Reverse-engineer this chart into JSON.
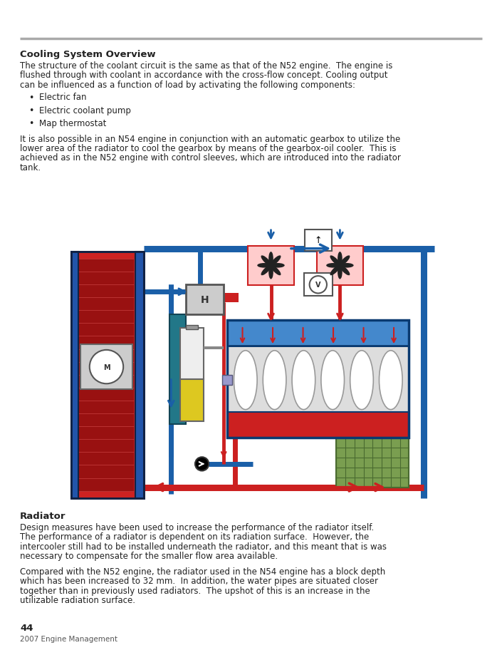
{
  "bg_color": "#ffffff",
  "page_width": 7.05,
  "page_height": 9.2,
  "top_line_color": "#aaaaaa",
  "title1": "Cooling System Overview",
  "body1_lines": [
    "The structure of the coolant circuit is the same as that of the N52 engine.  The engine is",
    "flushed through with coolant in accordance with the cross-flow concept. Cooling output",
    "can be influenced as a function of load by activating the following components:"
  ],
  "bullets": [
    "Electric fan",
    "Electric coolant pump",
    "Map thermostat"
  ],
  "body2_lines": [
    "It is also possible in an N54 engine in conjunction with an automatic gearbox to utilize the",
    "lower area of the radiator to cool the gearbox by means of the gearbox-oil cooler.  This is",
    "achieved as in the N52 engine with control sleeves, which are introduced into the radiator",
    "tank."
  ],
  "title2": "Radiator",
  "body3_lines": [
    "Design measures have been used to increase the performance of the radiator itself.",
    "The performance of a radiator is dependent on its radiation surface.  However, the",
    "intercooler still had to be installed underneath the radiator, and this meant that is was",
    "necessary to compensate for the smaller flow area available."
  ],
  "body4_lines": [
    "Compared with the N52 engine, the radiator used in the N54 engine has a block depth",
    "which has been increased to 32 mm.  In addition, the water pipes are situated closer",
    "together than in previously used radiators.  The upshot of this is an increase in the",
    "utilizable radiation surface."
  ],
  "footer_page": "44",
  "footer_text": "2007 Engine Management",
  "blue": "#1a5fa8",
  "blue_light": "#4488cc",
  "blue_dark": "#0a3a70",
  "red": "#cc2020",
  "red_dark": "#881010",
  "gray_line": "#aaaaaa",
  "text_color": "#222222"
}
